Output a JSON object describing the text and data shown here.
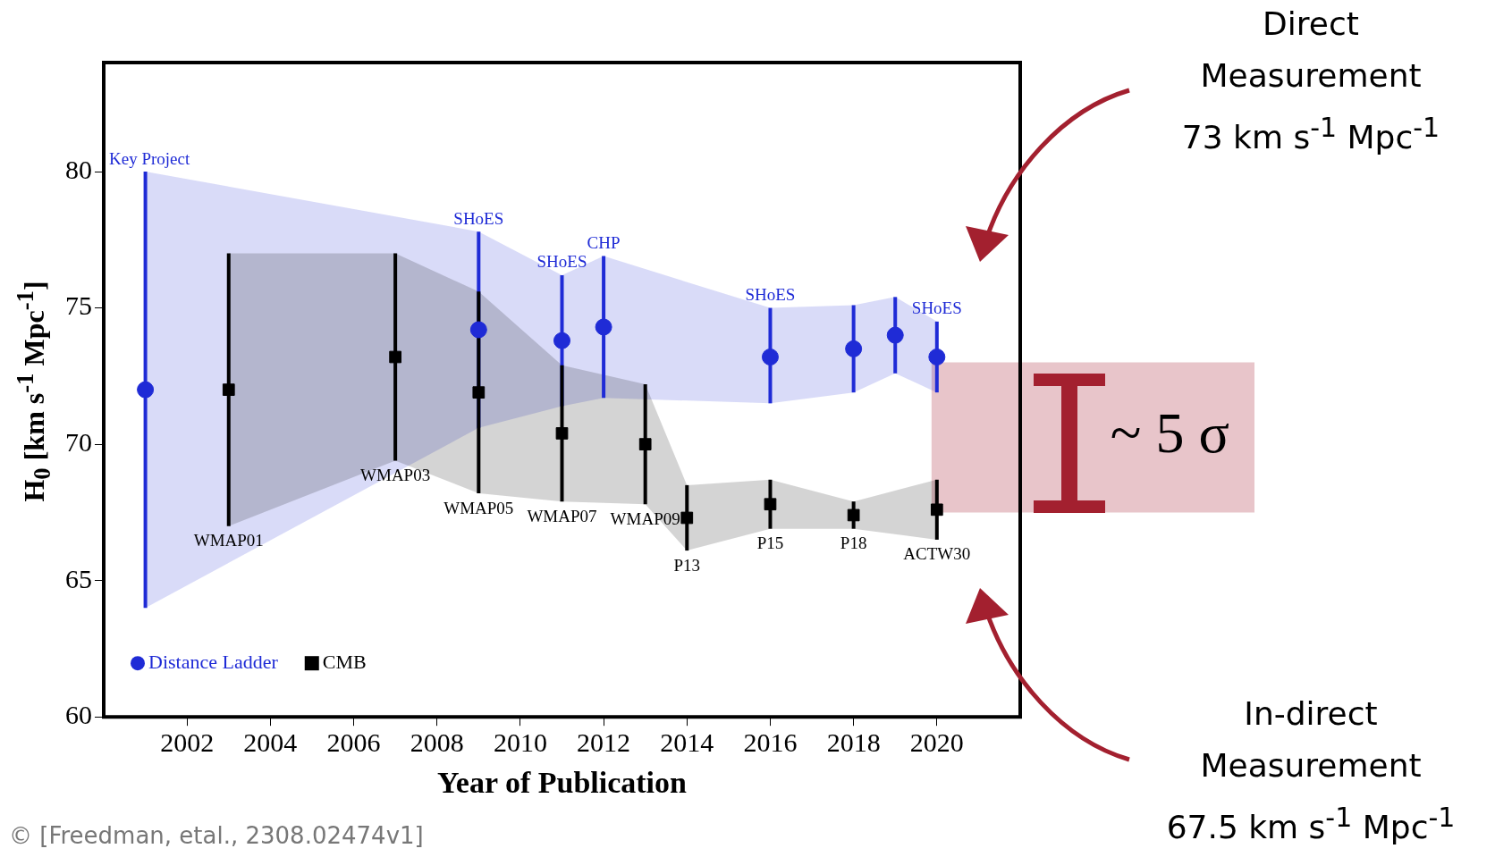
{
  "chart_data": {
    "type": "scatter",
    "xlabel": "Year of Publication",
    "ylabel": "H$_{0}$ [km s$^{-1}$ Mpc$^{-1}$]",
    "xlim": [
      2000,
      2022
    ],
    "xticks": [
      2002,
      2004,
      2006,
      2008,
      2010,
      2012,
      2014,
      2016,
      2018,
      2020
    ],
    "ylim": [
      60,
      84
    ],
    "yticks": [
      60,
      65,
      70,
      75,
      80
    ],
    "grid": false,
    "legend": "bottom left",
    "series": [
      {
        "name": "Distance Ladder",
        "color": "#1f2bd6",
        "marker": "circle",
        "x": [
          2001,
          2009,
          2011,
          2012,
          2016,
          2018,
          2019,
          2020
        ],
        "values": [
          72,
          74.2,
          73.8,
          74.3,
          73.2,
          73.5,
          74.0,
          73.2
        ],
        "errors": [
          [
            64,
            80
          ],
          [
            70.6,
            77.8
          ],
          [
            71.4,
            76.2
          ],
          [
            71.7,
            76.9
          ],
          [
            71.5,
            75.0
          ],
          [
            71.9,
            75.1
          ],
          [
            72.6,
            75.4
          ],
          [
            71.9,
            74.5
          ]
        ],
        "lower": [
          64,
          70.6,
          71.4,
          71.7,
          71.5,
          71.9,
          72.6,
          71.9
        ],
        "upper": [
          80,
          77.8,
          76.2,
          76.9,
          75.0,
          75.1,
          75.4,
          74.5
        ]
      },
      {
        "name": "CMB",
        "color": "#000000",
        "marker": "square",
        "x": [
          2003,
          2007,
          2009,
          2011,
          2013,
          2014,
          2016,
          2018,
          2020
        ],
        "values": [
          72,
          73.2,
          71.9,
          70.4,
          70.0,
          67.3,
          67.8,
          67.4,
          67.6
        ],
        "errors": [
          [
            67,
            77
          ],
          [
            69.4,
            77
          ],
          [
            68.2,
            75.6
          ],
          [
            67.9,
            72.9
          ],
          [
            67.8,
            72.2
          ],
          [
            66.1,
            68.5
          ],
          [
            66.9,
            68.7
          ],
          [
            66.9,
            67.9
          ],
          [
            66.5,
            68.7
          ]
        ],
        "lower": [
          67,
          69.4,
          68.2,
          67.9,
          67.8,
          66.1,
          66.9,
          66.9,
          66.5
        ],
        "upper": [
          77,
          77,
          75.6,
          72.9,
          72.2,
          68.5,
          68.7,
          67.9,
          68.7
        ]
      }
    ],
    "bands": [
      {
        "axis": "y",
        "from": 67.5,
        "to": 73,
        "label": "~ 5 σ",
        "color": "#e8c5ca"
      }
    ],
    "annotations": [
      "Direct\nMeasurement\n73 km s$^{-1}$ Mpc$^{-1}$",
      "In-direct\nMeasurement\n67.5 km s$^{-1}$ Mpc$^{-1}$",
      "© [Freedman, etal., 2308.02474v1]",
      {
        "text": "Key Project",
        "x": 2001,
        "y": 80
      },
      {
        "text": "SHoES",
        "x": 2009,
        "y": 77.8
      },
      {
        "text": "SHoES",
        "x": 2011,
        "y": 76.2
      },
      {
        "text": "CHP",
        "x": 2012,
        "y": 76.9
      },
      {
        "text": "SHoES",
        "x": 2016,
        "y": 75.0
      },
      {
        "text": "SHoES",
        "x": 2020,
        "y": 74.5
      },
      {
        "text": "WMAP01",
        "x": 2003,
        "y": 67
      },
      {
        "text": "WMAP03",
        "x": 2007,
        "y": 69.4
      },
      {
        "text": "WMAP05",
        "x": 2009,
        "y": 68.2
      },
      {
        "text": "WMAP07",
        "x": 2011,
        "y": 67.9
      },
      {
        "text": "WMAP09",
        "x": 2013,
        "y": 67.8
      },
      {
        "text": "P13",
        "x": 2014,
        "y": 66.1
      },
      {
        "text": "P15",
        "x": 2016,
        "y": 66.9
      },
      {
        "text": "P18",
        "x": 2018,
        "y": 66.9
      },
      {
        "text": "ACTW30",
        "x": 2020,
        "y": 66.5
      }
    ]
  }
}
